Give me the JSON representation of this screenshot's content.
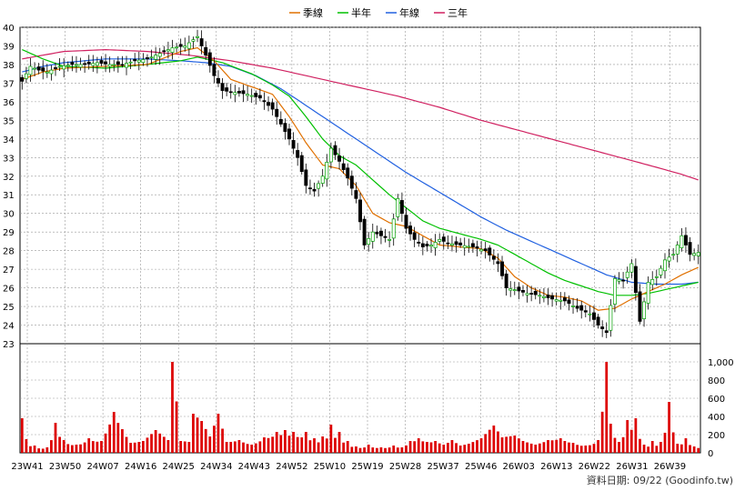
{
  "chart_data": {
    "type": "candlestick_with_volume",
    "legend": [
      {
        "label": "季線",
        "color": "#e07000"
      },
      {
        "label": "半年",
        "color": "#00c000"
      },
      {
        "label": "年線",
        "color": "#2060e0"
      },
      {
        "label": "三年",
        "color": "#d02060"
      }
    ],
    "price_axis": {
      "min": 23,
      "max": 40,
      "ticks": [
        23,
        24,
        25,
        26,
        27,
        28,
        29,
        30,
        31,
        32,
        33,
        34,
        35,
        36,
        37,
        38,
        39,
        40
      ]
    },
    "volume_axis": {
      "min": 0,
      "max": 1000,
      "ticks": [
        0,
        200,
        400,
        600,
        800,
        1000
      ],
      "tick_labels": [
        "0",
        "200",
        "400",
        "600",
        "800",
        "1,000"
      ]
    },
    "x_ticks": [
      "23W41",
      "23W50",
      "24W07",
      "24W16",
      "24W25",
      "24W34",
      "24W43",
      "24W52",
      "25W10",
      "25W19",
      "25W28",
      "25W37",
      "25W46",
      "26W03",
      "26W13",
      "26W22",
      "26W31",
      "26W39"
    ],
    "up_color": "#00a000",
    "down_color": "#000000",
    "volume_color": "#dd0000",
    "close_anchors": [
      [
        0,
        37.1
      ],
      [
        2,
        37.9
      ],
      [
        4,
        37.7
      ],
      [
        6,
        37.6
      ],
      [
        9,
        37.9
      ],
      [
        12,
        38.0
      ],
      [
        15,
        38.0
      ],
      [
        18,
        38.1
      ],
      [
        21,
        38.0
      ],
      [
        24,
        38.0
      ],
      [
        27,
        38.2
      ],
      [
        30,
        38.3
      ],
      [
        33,
        38.6
      ],
      [
        36,
        38.9
      ],
      [
        39,
        39.0
      ],
      [
        42,
        39.5
      ],
      [
        44,
        38.5
      ],
      [
        46,
        37.4
      ],
      [
        48,
        36.6
      ],
      [
        51,
        36.5
      ],
      [
        54,
        36.4
      ],
      [
        57,
        36.2
      ],
      [
        60,
        35.6
      ],
      [
        62,
        34.8
      ],
      [
        64,
        34.0
      ],
      [
        66,
        33.0
      ],
      [
        68,
        31.5
      ],
      [
        70,
        31.2
      ],
      [
        72,
        32.0
      ],
      [
        74,
        33.5
      ],
      [
        76,
        32.8
      ],
      [
        78,
        31.9
      ],
      [
        80,
        30.8
      ],
      [
        82,
        28.3
      ],
      [
        84,
        29.0
      ],
      [
        86,
        28.8
      ],
      [
        88,
        28.6
      ],
      [
        90,
        30.8
      ],
      [
        92,
        29.2
      ],
      [
        94,
        28.6
      ],
      [
        96,
        28.2
      ],
      [
        98,
        28.3
      ],
      [
        100,
        28.6
      ],
      [
        102,
        28.4
      ],
      [
        105,
        28.3
      ],
      [
        108,
        28.2
      ],
      [
        111,
        28.0
      ],
      [
        114,
        27.3
      ],
      [
        116,
        26.0
      ],
      [
        118,
        25.9
      ],
      [
        121,
        25.7
      ],
      [
        124,
        25.6
      ],
      [
        127,
        25.4
      ],
      [
        130,
        25.3
      ],
      [
        133,
        24.9
      ],
      [
        136,
        24.6
      ],
      [
        138,
        24.0
      ],
      [
        140,
        23.6
      ],
      [
        142,
        26.5
      ],
      [
        144,
        26.4
      ],
      [
        146,
        27.3
      ],
      [
        148,
        24.2
      ],
      [
        150,
        26.3
      ],
      [
        152,
        26.6
      ],
      [
        154,
        27.5
      ],
      [
        156,
        27.8
      ],
      [
        158,
        28.8
      ],
      [
        160,
        27.8
      ],
      [
        162,
        27.9
      ]
    ],
    "quarterly_line": [
      [
        0,
        37.2
      ],
      [
        5,
        37.6
      ],
      [
        10,
        37.8
      ],
      [
        20,
        37.9
      ],
      [
        30,
        38.0
      ],
      [
        38,
        38.7
      ],
      [
        42,
        38.9
      ],
      [
        46,
        38.2
      ],
      [
        50,
        37.2
      ],
      [
        55,
        36.8
      ],
      [
        60,
        36.4
      ],
      [
        64,
        35.2
      ],
      [
        68,
        33.8
      ],
      [
        72,
        32.6
      ],
      [
        76,
        32.4
      ],
      [
        80,
        31.5
      ],
      [
        84,
        30.0
      ],
      [
        88,
        29.5
      ],
      [
        92,
        29.3
      ],
      [
        96,
        28.8
      ],
      [
        100,
        28.3
      ],
      [
        105,
        28.2
      ],
      [
        110,
        28.1
      ],
      [
        114,
        27.6
      ],
      [
        118,
        26.6
      ],
      [
        122,
        26.0
      ],
      [
        126,
        25.6
      ],
      [
        130,
        25.5
      ],
      [
        134,
        25.3
      ],
      [
        138,
        24.8
      ],
      [
        142,
        24.9
      ],
      [
        146,
        25.4
      ],
      [
        150,
        25.8
      ],
      [
        154,
        26.2
      ],
      [
        158,
        26.7
      ],
      [
        162,
        27.1
      ]
    ],
    "half_year_line": [
      [
        0,
        38.8
      ],
      [
        5,
        38.3
      ],
      [
        10,
        37.9
      ],
      [
        20,
        37.8
      ],
      [
        30,
        38.0
      ],
      [
        38,
        38.2
      ],
      [
        42,
        38.4
      ],
      [
        48,
        38.1
      ],
      [
        55,
        37.5
      ],
      [
        60,
        36.9
      ],
      [
        64,
        36.3
      ],
      [
        68,
        35.2
      ],
      [
        72,
        34.0
      ],
      [
        76,
        33.1
      ],
      [
        80,
        32.6
      ],
      [
        84,
        31.8
      ],
      [
        88,
        31.0
      ],
      [
        92,
        30.3
      ],
      [
        96,
        29.6
      ],
      [
        100,
        29.2
      ],
      [
        105,
        28.9
      ],
      [
        110,
        28.6
      ],
      [
        114,
        28.3
      ],
      [
        118,
        27.8
      ],
      [
        122,
        27.3
      ],
      [
        126,
        26.8
      ],
      [
        130,
        26.4
      ],
      [
        134,
        26.1
      ],
      [
        138,
        25.8
      ],
      [
        142,
        25.6
      ],
      [
        146,
        25.6
      ],
      [
        150,
        25.7
      ],
      [
        154,
        25.9
      ],
      [
        158,
        26.1
      ],
      [
        162,
        26.3
      ]
    ],
    "year_line": [
      [
        0,
        37.6
      ],
      [
        5,
        37.9
      ],
      [
        10,
        38.1
      ],
      [
        20,
        38.3
      ],
      [
        30,
        38.3
      ],
      [
        38,
        38.2
      ],
      [
        44,
        38.1
      ],
      [
        50,
        37.9
      ],
      [
        56,
        37.4
      ],
      [
        62,
        36.7
      ],
      [
        68,
        35.8
      ],
      [
        74,
        34.9
      ],
      [
        80,
        34.0
      ],
      [
        86,
        33.1
      ],
      [
        92,
        32.2
      ],
      [
        98,
        31.4
      ],
      [
        104,
        30.6
      ],
      [
        110,
        29.8
      ],
      [
        116,
        29.1
      ],
      [
        122,
        28.5
      ],
      [
        128,
        27.9
      ],
      [
        134,
        27.3
      ],
      [
        140,
        26.7
      ],
      [
        146,
        26.3
      ],
      [
        152,
        26.2
      ],
      [
        158,
        26.2
      ],
      [
        162,
        26.3
      ]
    ],
    "three_year_line": [
      [
        0,
        38.3
      ],
      [
        10,
        38.7
      ],
      [
        20,
        38.8
      ],
      [
        30,
        38.7
      ],
      [
        40,
        38.5
      ],
      [
        50,
        38.2
      ],
      [
        60,
        37.8
      ],
      [
        70,
        37.3
      ],
      [
        80,
        36.8
      ],
      [
        90,
        36.3
      ],
      [
        100,
        35.7
      ],
      [
        110,
        35.0
      ],
      [
        120,
        34.4
      ],
      [
        130,
        33.8
      ],
      [
        140,
        33.2
      ],
      [
        150,
        32.6
      ],
      [
        158,
        32.1
      ],
      [
        162,
        31.8
      ]
    ],
    "volume_anchors": [
      [
        0,
        380
      ],
      [
        1,
        150
      ],
      [
        3,
        80
      ],
      [
        6,
        60
      ],
      [
        8,
        330
      ],
      [
        10,
        140
      ],
      [
        13,
        90
      ],
      [
        16,
        160
      ],
      [
        19,
        130
      ],
      [
        22,
        450
      ],
      [
        24,
        260
      ],
      [
        26,
        110
      ],
      [
        29,
        130
      ],
      [
        32,
        250
      ],
      [
        35,
        140
      ],
      [
        36,
        1000
      ],
      [
        38,
        130
      ],
      [
        40,
        120
      ],
      [
        41,
        430
      ],
      [
        43,
        350
      ],
      [
        45,
        180
      ],
      [
        47,
        430
      ],
      [
        49,
        120
      ],
      [
        52,
        140
      ],
      [
        55,
        90
      ],
      [
        58,
        170
      ],
      [
        61,
        230
      ],
      [
        63,
        250
      ],
      [
        65,
        230
      ],
      [
        68,
        230
      ],
      [
        70,
        160
      ],
      [
        72,
        180
      ],
      [
        74,
        310
      ],
      [
        76,
        230
      ],
      [
        78,
        130
      ],
      [
        80,
        70
      ],
      [
        83,
        90
      ],
      [
        86,
        60
      ],
      [
        89,
        80
      ],
      [
        91,
        60
      ],
      [
        93,
        130
      ],
      [
        95,
        160
      ],
      [
        97,
        120
      ],
      [
        99,
        130
      ],
      [
        101,
        90
      ],
      [
        103,
        140
      ],
      [
        105,
        80
      ],
      [
        107,
        100
      ],
      [
        110,
        160
      ],
      [
        113,
        300
      ],
      [
        115,
        170
      ],
      [
        118,
        190
      ],
      [
        120,
        130
      ],
      [
        123,
        90
      ],
      [
        126,
        140
      ],
      [
        129,
        160
      ],
      [
        132,
        110
      ],
      [
        135,
        80
      ],
      [
        138,
        140
      ],
      [
        140,
        1000
      ],
      [
        141,
        320
      ],
      [
        143,
        120
      ],
      [
        145,
        360
      ],
      [
        147,
        380
      ],
      [
        149,
        90
      ],
      [
        151,
        130
      ],
      [
        153,
        120
      ],
      [
        155,
        560
      ],
      [
        157,
        100
      ],
      [
        159,
        160
      ],
      [
        161,
        70
      ]
    ],
    "footer": "資料日期: 09/22  (Goodinfo.tw)"
  }
}
